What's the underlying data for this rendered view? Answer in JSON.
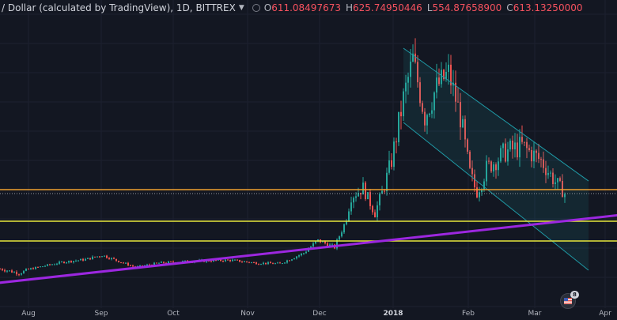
{
  "header": {
    "symbol": "/ Dollar (calculated by TradingView), 1D, BITTREX",
    "o_label": "O",
    "o_value": "611.08497673",
    "h_label": "H",
    "h_value": "625.74950446",
    "l_label": "L",
    "l_value": "554.87658900",
    "c_label": "C",
    "c_value": "613.13250000"
  },
  "x_axis": [
    "Aug",
    "Sep",
    "Oct",
    "Nov",
    "Dec",
    "2018",
    "Feb",
    "Mar",
    "Apr"
  ],
  "events": {
    "icon": "us-flag-icon",
    "count": "8"
  },
  "colors": {
    "up": "#26a69a",
    "down": "#ef5350",
    "orange": "#f0a030",
    "yellow": "#e6e63c",
    "purple": "#9c27e0",
    "channel": "#1f9aa6",
    "bg": "#131722"
  },
  "chart_data": {
    "type": "candlestick",
    "interval": "1D",
    "closes": [
      {
        "date": "2017-07-20",
        "close": 120
      },
      {
        "date": "2017-07-28",
        "close": 105
      },
      {
        "date": "2017-08-05",
        "close": 130
      },
      {
        "date": "2017-08-15",
        "close": 165
      },
      {
        "date": "2017-08-25",
        "close": 185
      },
      {
        "date": "2017-09-01",
        "close": 215
      },
      {
        "date": "2017-09-10",
        "close": 160
      },
      {
        "date": "2017-09-15",
        "close": 130
      },
      {
        "date": "2017-09-25",
        "close": 160
      },
      {
        "date": "2017-10-05",
        "close": 170
      },
      {
        "date": "2017-10-15",
        "close": 175
      },
      {
        "date": "2017-10-25",
        "close": 180
      },
      {
        "date": "2017-11-05",
        "close": 160
      },
      {
        "date": "2017-11-15",
        "close": 155
      },
      {
        "date": "2017-11-25",
        "close": 230
      },
      {
        "date": "2017-12-01",
        "close": 320
      },
      {
        "date": "2017-12-08",
        "close": 270
      },
      {
        "date": "2017-12-11",
        "close": 400
      },
      {
        "date": "2017-12-15",
        "close": 600
      },
      {
        "date": "2017-12-20",
        "close": 640
      },
      {
        "date": "2017-12-25",
        "close": 520
      },
      {
        "date": "2018-01-01",
        "close": 750
      },
      {
        "date": "2018-01-06",
        "close": 960
      },
      {
        "date": "2018-01-10",
        "close": 1100
      },
      {
        "date": "2018-01-15",
        "close": 900
      },
      {
        "date": "2018-01-20",
        "close": 1000
      },
      {
        "date": "2018-01-25",
        "close": 1050
      },
      {
        "date": "2018-01-30",
        "close": 900
      },
      {
        "date": "2018-02-03",
        "close": 700
      },
      {
        "date": "2018-02-06",
        "close": 620
      },
      {
        "date": "2018-02-10",
        "close": 720
      },
      {
        "date": "2018-02-18",
        "close": 780
      },
      {
        "date": "2018-02-25",
        "close": 800
      },
      {
        "date": "2018-03-05",
        "close": 750
      },
      {
        "date": "2018-03-10",
        "close": 680
      },
      {
        "date": "2018-03-15",
        "close": 613
      }
    ],
    "horizontal_lines": [
      {
        "value": 636,
        "color": "orange"
      },
      {
        "value": 613,
        "color": "grey-dotted"
      },
      {
        "value": 480,
        "color": "yellow"
      },
      {
        "value": 315,
        "color": "yellow"
      }
    ],
    "trendline_support": {
      "from": {
        "date": "2017-07-20",
        "value": 55
      },
      "to": {
        "date": "2018-04-05",
        "value": 485
      },
      "color": "purple"
    },
    "descending_channel": {
      "upper": {
        "from": {
          "date": "2018-01-06",
          "value": 1140
        },
        "to": {
          "date": "2018-03-25",
          "value": 670
        }
      },
      "lower": {
        "from": {
          "date": "2018-01-06",
          "value": 880
        },
        "to": {
          "date": "2018-03-25",
          "value": 115
        }
      }
    }
  }
}
